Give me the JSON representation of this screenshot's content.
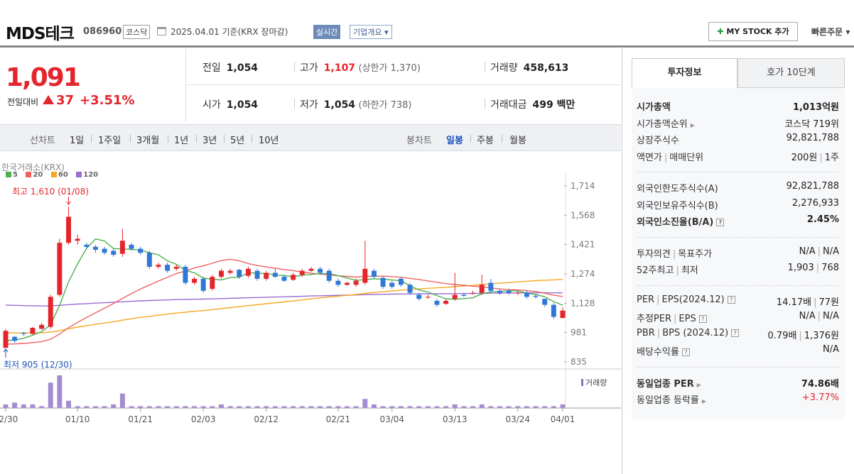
{
  "header": {
    "name": "MDS테크",
    "code": "086960",
    "market": "코스닥",
    "date_text": "2025.04.01  기준(KRX 장마감)",
    "realtime_label": "실시간",
    "corp_info_label": "기업개요 ▾",
    "mystock_label": "MY STOCK 추가",
    "quick_order_label": "빠른주문 ▾"
  },
  "price": {
    "current": "1,091",
    "compare_label": "전일대비",
    "change": "37",
    "change_pct": "+3.51%"
  },
  "stats": {
    "prev_label": "전일",
    "prev": "1,054",
    "high_label": "고가",
    "high": "1,107",
    "upper_limit": "(상한가 1,370)",
    "volume_label": "거래량",
    "volume": "458,613",
    "open_label": "시가",
    "open": "1,054",
    "low_label": "저가",
    "low": "1,054",
    "lower_limit": "(하한가 738)",
    "amount_label": "거래대금",
    "amount": "499 백만"
  },
  "chart_tabs": {
    "line_label": "선차트",
    "periods": [
      "1일",
      "1주일",
      "3개월",
      "1년",
      "3년",
      "5년",
      "10년"
    ],
    "candle_label": "봉차트",
    "candle_periods": [
      "일봉",
      "주봉",
      "월봉"
    ],
    "active_candle": "일봉"
  },
  "chart": {
    "source": "한국거래소(KRX)",
    "ma_legend": [
      {
        "name": "5",
        "color": "#4caf50"
      },
      {
        "name": "20",
        "color": "#f06262"
      },
      {
        "name": "60",
        "color": "#f5a623"
      },
      {
        "name": "120",
        "color": "#9b6cd1"
      }
    ],
    "high_note": "최고 1,610 (01/08)",
    "low_note": "최저  905 (12/30)",
    "volume_label": "거래량",
    "colors": {
      "up": "#e4252c",
      "down": "#2f78d8",
      "volume": "#a58bd0"
    }
  },
  "chart_data": {
    "type": "candlestick",
    "ylim": [
      835,
      1714
    ],
    "yticks": [
      "1,714",
      "1,568",
      "1,421",
      "1,274",
      "1,128",
      "981",
      "835"
    ],
    "xticks": [
      "12/30",
      "01/10",
      "01/21",
      "02/03",
      "02/12",
      "02/21",
      "03/04",
      "03/13",
      "03/24",
      "04/01"
    ],
    "candles": [
      [
        905,
        990,
        905,
        1000
      ],
      [
        960,
        940,
        930,
        965
      ],
      [
        980,
        975,
        965,
        985
      ],
      [
        975,
        1005,
        970,
        1010
      ],
      [
        1000,
        1020,
        995,
        1030
      ],
      [
        1010,
        1160,
        1000,
        1170
      ],
      [
        1170,
        1430,
        1160,
        1450
      ],
      [
        1430,
        1560,
        1420,
        1610
      ],
      [
        1440,
        1450,
        1420,
        1470
      ],
      [
        1420,
        1410,
        1400,
        1430
      ],
      [
        1410,
        1395,
        1380,
        1420
      ],
      [
        1400,
        1380,
        1370,
        1410
      ],
      [
        1390,
        1370,
        1360,
        1400
      ],
      [
        1375,
        1440,
        1360,
        1500
      ],
      [
        1420,
        1400,
        1390,
        1430
      ],
      [
        1400,
        1380,
        1370,
        1410
      ],
      [
        1380,
        1310,
        1300,
        1390
      ],
      [
        1310,
        1320,
        1300,
        1330
      ],
      [
        1320,
        1290,
        1280,
        1330
      ],
      [
        1300,
        1310,
        1290,
        1320
      ],
      [
        1310,
        1230,
        1220,
        1320
      ],
      [
        1230,
        1250,
        1220,
        1260
      ],
      [
        1250,
        1190,
        1180,
        1260
      ],
      [
        1200,
        1260,
        1190,
        1270
      ],
      [
        1260,
        1290,
        1250,
        1300
      ],
      [
        1280,
        1290,
        1270,
        1300
      ],
      [
        1295,
        1260,
        1250,
        1300
      ],
      [
        1265,
        1300,
        1255,
        1310
      ],
      [
        1290,
        1250,
        1240,
        1300
      ],
      [
        1250,
        1280,
        1240,
        1290
      ],
      [
        1280,
        1260,
        1255,
        1300
      ],
      [
        1260,
        1240,
        1235,
        1270
      ],
      [
        1245,
        1270,
        1240,
        1280
      ],
      [
        1270,
        1290,
        1260,
        1300
      ],
      [
        1290,
        1300,
        1285,
        1310
      ],
      [
        1300,
        1280,
        1270,
        1310
      ],
      [
        1290,
        1240,
        1230,
        1300
      ],
      [
        1240,
        1220,
        1210,
        1250
      ],
      [
        1220,
        1230,
        1215,
        1235
      ],
      [
        1220,
        1240,
        1210,
        1250
      ],
      [
        1230,
        1300,
        1220,
        1440
      ],
      [
        1290,
        1260,
        1250,
        1300
      ],
      [
        1255,
        1210,
        1200,
        1260
      ],
      [
        1230,
        1210,
        1200,
        1240
      ],
      [
        1250,
        1220,
        1210,
        1260
      ],
      [
        1220,
        1180,
        1170,
        1230
      ],
      [
        1170,
        1150,
        1140,
        1180
      ],
      [
        1160,
        1160,
        1150,
        1170
      ],
      [
        1140,
        1120,
        1110,
        1150
      ],
      [
        1125,
        1140,
        1120,
        1150
      ],
      [
        1150,
        1170,
        1140,
        1280
      ],
      [
        1170,
        1165,
        1160,
        1180
      ],
      [
        1180,
        1180,
        1170,
        1190
      ],
      [
        1180,
        1220,
        1170,
        1270
      ],
      [
        1230,
        1190,
        1180,
        1250
      ],
      [
        1190,
        1180,
        1170,
        1200
      ],
      [
        1190,
        1180,
        1170,
        1200
      ],
      [
        1180,
        1180,
        1170,
        1190
      ],
      [
        1180,
        1160,
        1150,
        1190
      ],
      [
        1165,
        1160,
        1150,
        1170
      ],
      [
        1150,
        1120,
        1110,
        1150
      ],
      [
        1120,
        1060,
        1050,
        1130
      ],
      [
        1054,
        1091,
        1054,
        1107
      ]
    ],
    "volume": [
      2,
      3,
      2,
      2,
      1,
      14,
      18,
      4,
      1,
      1,
      1,
      1,
      2,
      8,
      1,
      1,
      1,
      1,
      1,
      1,
      1,
      1,
      1,
      1,
      2,
      1,
      1,
      1,
      1,
      1,
      1,
      1,
      1,
      1,
      1,
      1,
      1,
      1,
      1,
      1,
      5,
      2,
      1,
      1,
      1,
      1,
      1,
      1,
      1,
      1,
      2,
      1,
      1,
      2,
      1,
      1,
      1,
      1,
      1,
      1,
      1,
      1,
      2
    ]
  },
  "right_panel": {
    "tabs": [
      "투자정보",
      "호가 10단계"
    ],
    "groups": [
      [
        {
          "k": "시가총액",
          "v": "1,013억원",
          "bold": true
        },
        {
          "k": "시가총액순위",
          "v": "코스닥 719위",
          "arrow": true
        },
        {
          "k": "상장주식수",
          "v": "92,821,788"
        },
        {
          "k": "액면가 | 매매단위",
          "v": "200원 | 1주"
        }
      ],
      [
        {
          "k": "외국인한도주식수(A)",
          "v": "92,821,788"
        },
        {
          "k": "외국인보유주식수(B)",
          "v": "2,276,933"
        },
        {
          "k": "외국인소진율(B/A)",
          "v": "2.45%",
          "bold": true,
          "help": true
        }
      ],
      [
        {
          "k": "투자의견 | 목표주가",
          "v": "N/A | N/A"
        },
        {
          "k": "52주최고 | 최저",
          "v": "1,903 | 768"
        }
      ],
      [
        {
          "k": "PER | EPS(2024.12)",
          "v": "14.17배 | 77원",
          "help": true
        },
        {
          "k": "추정PER | EPS",
          "v": "N/A | N/A",
          "help": true
        },
        {
          "k": "PBR | BPS (2024.12)",
          "v": "0.79배 | 1,376원",
          "help": true
        },
        {
          "k": "배당수익률",
          "v": "N/A",
          "help": true
        }
      ],
      [
        {
          "k": "동일업종 PER",
          "v": "74.86배",
          "bold": true,
          "arrow": true
        },
        {
          "k": "동일업종 등락률",
          "v": "+3.77%",
          "arrow": true,
          "red": true
        }
      ]
    ]
  }
}
